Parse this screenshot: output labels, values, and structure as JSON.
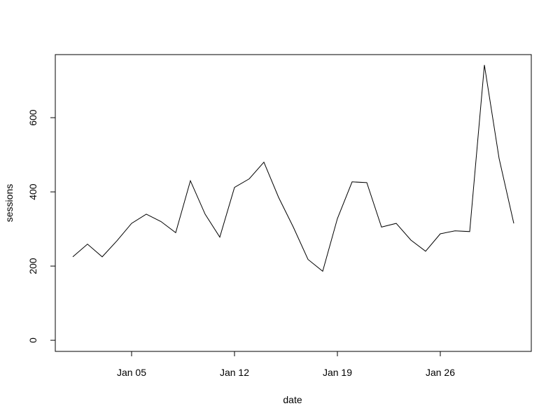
{
  "chart_data": {
    "type": "line",
    "title": "",
    "xlabel": "date",
    "ylabel": "sessions",
    "x": [
      "Jan 01",
      "Jan 02",
      "Jan 03",
      "Jan 04",
      "Jan 05",
      "Jan 06",
      "Jan 07",
      "Jan 08",
      "Jan 09",
      "Jan 10",
      "Jan 11",
      "Jan 12",
      "Jan 13",
      "Jan 14",
      "Jan 15",
      "Jan 16",
      "Jan 17",
      "Jan 18",
      "Jan 19",
      "Jan 20",
      "Jan 21",
      "Jan 22",
      "Jan 23",
      "Jan 24",
      "Jan 25",
      "Jan 26",
      "Jan 27",
      "Jan 28",
      "Jan 29",
      "Jan 30",
      "Jan 31"
    ],
    "series": [
      {
        "values": [
          225,
          259,
          225,
          268,
          315,
          340,
          320,
          290,
          430,
          340,
          278,
          412,
          435,
          480,
          385,
          305,
          218,
          186,
          328,
          427,
          425,
          305,
          315,
          270,
          240,
          287,
          295,
          293,
          742,
          490,
          315
        ]
      }
    ],
    "x_ticks": [
      "Jan 05",
      "Jan 12",
      "Jan 19",
      "Jan 26"
    ],
    "y_ticks": [
      "0",
      "200",
      "400",
      "600"
    ],
    "ylim": [
      -30,
      770
    ],
    "grid": false,
    "line_color": "#000000"
  }
}
